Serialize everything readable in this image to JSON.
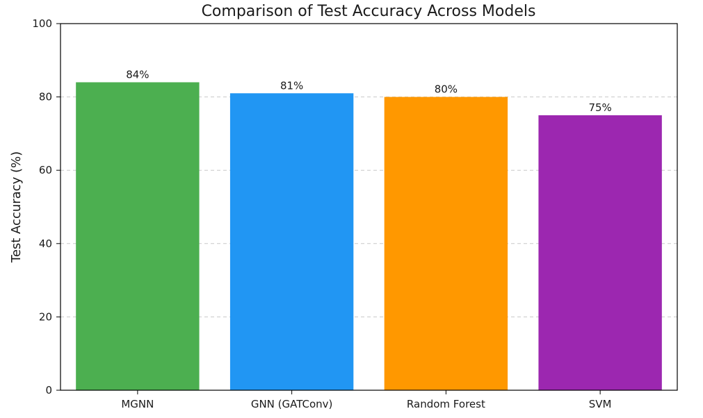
{
  "chart_data": {
    "type": "bar",
    "title": "Comparison of Test Accuracy Across Models",
    "xlabel": "",
    "ylabel": "Test Accuracy (%)",
    "categories": [
      "MGNN",
      "GNN (GATConv)",
      "Random Forest",
      "SVM"
    ],
    "values": [
      84,
      81,
      80,
      75
    ],
    "data_labels": [
      "84%",
      "81%",
      "80%",
      "75%"
    ],
    "colors": [
      "#4caf50",
      "#2196f3",
      "#ff9800",
      "#9c27b0"
    ],
    "ylim": [
      0,
      100
    ],
    "yticks": [
      0,
      20,
      40,
      60,
      80,
      100
    ],
    "ytick_labels": [
      "0",
      "20",
      "40",
      "60",
      "80",
      "100"
    ],
    "grid": "horizontal dashed",
    "legend": "none"
  }
}
